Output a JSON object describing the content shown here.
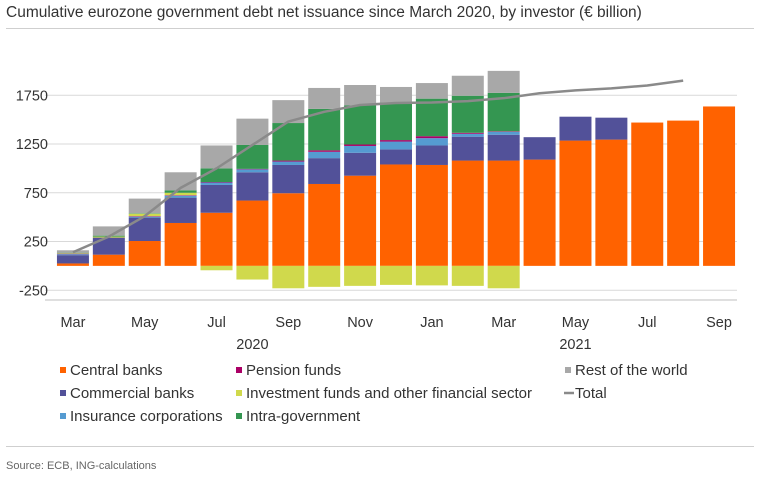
{
  "title": "Cumulative eurozone government debt net issuance since March 2020, by investor (€ billion)",
  "source": "Source: ECB, ING-calculations",
  "colors": {
    "Central banks": "#ff6200",
    "Commercial banks": "#525199",
    "Insurance corporations": "#559bd1",
    "Pension funds": "#ab0066",
    "Investment funds and other financial sector": "#d0d94c",
    "Intra-government": "#349651",
    "Rest of the world": "#a8a8a8",
    "Total": "#8a8a8a"
  },
  "chart_data": {
    "type": "bar",
    "stacked": true,
    "title": "Cumulative eurozone government debt net issuance since March 2020, by investor (€ billion)",
    "xlabel": "",
    "ylabel": "",
    "ylim": [
      -350,
      2050
    ],
    "yticks": [
      1750,
      1250,
      750,
      250,
      -250
    ],
    "xticks": [
      {
        "label": "Mar",
        "index": 0
      },
      {
        "label": "May",
        "index": 2
      },
      {
        "label": "Jul",
        "index": 4
      },
      {
        "label": "Sep",
        "index": 6
      },
      {
        "label": "Nov",
        "index": 8
      },
      {
        "label": "Jan",
        "index": 10
      },
      {
        "label": "Mar",
        "index": 12
      },
      {
        "label": "May",
        "index": 14
      },
      {
        "label": "Jul",
        "index": 16
      },
      {
        "label": "Sep",
        "index": 18
      }
    ],
    "year_labels": [
      {
        "label": "2020",
        "index": 5
      },
      {
        "label": "2021",
        "index": 14
      }
    ],
    "categories": [
      "Mar 2020",
      "Apr 2020",
      "May 2020",
      "Jun 2020",
      "Jul 2020",
      "Aug 2020",
      "Sep 2020",
      "Oct 2020",
      "Nov 2020",
      "Dec 2020",
      "Jan 2021",
      "Feb 2021",
      "Mar 2021",
      "Apr 2021",
      "May 2021",
      "Jun 2021",
      "Jul 2021",
      "Aug 2021",
      "Sep 2021"
    ],
    "series": [
      {
        "name": "Central banks",
        "values": [
          25,
          115,
          255,
          440,
          545,
          670,
          745,
          840,
          925,
          1040,
          1035,
          1080,
          1080,
          1090,
          1285,
          1295,
          1470,
          1490,
          1635
        ]
      },
      {
        "name": "Commercial banks",
        "values": [
          85,
          175,
          240,
          260,
          285,
          290,
          290,
          265,
          235,
          155,
          200,
          245,
          265,
          230,
          245,
          225,
          0,
          0,
          0
        ]
      },
      {
        "name": "Insurance corporations",
        "values": [
          10,
          0,
          10,
          20,
          25,
          30,
          35,
          65,
          70,
          80,
          75,
          30,
          30,
          0,
          0,
          0,
          0,
          0,
          0
        ]
      },
      {
        "name": "Pension funds",
        "values": [
          5,
          0,
          5,
          5,
          5,
          5,
          10,
          15,
          15,
          15,
          20,
          10,
          5,
          0,
          0,
          0,
          0,
          0,
          0
        ]
      },
      {
        "name": "Investment funds and other financial sector",
        "values": [
          5,
          10,
          25,
          25,
          -45,
          -140,
          -230,
          -215,
          -205,
          -195,
          -200,
          -205,
          -230,
          0,
          0,
          0,
          0,
          0,
          0
        ]
      },
      {
        "name": "Intra-government",
        "values": [
          5,
          10,
          5,
          25,
          140,
          245,
          385,
          425,
          400,
          385,
          385,
          380,
          395,
          0,
          0,
          0,
          0,
          0,
          0
        ]
      },
      {
        "name": "Rest of the world",
        "values": [
          25,
          95,
          150,
          185,
          235,
          270,
          235,
          215,
          210,
          160,
          160,
          205,
          225,
          0,
          0,
          0,
          0,
          0,
          0
        ]
      },
      {
        "name": "Total",
        "type": "line",
        "values": [
          140,
          300,
          510,
          800,
          1000,
          1240,
          1480,
          1580,
          1650,
          1670,
          1675,
          1690,
          1720,
          1770,
          1800,
          1820,
          1850,
          1900,
          null
        ]
      }
    ],
    "legend": {
      "placement": "bottom",
      "entries": [
        {
          "name": "Central banks",
          "marker": "square"
        },
        {
          "name": "Pension funds",
          "marker": "square"
        },
        {
          "name": "Rest of the world",
          "marker": "square"
        },
        {
          "name": "Commercial banks",
          "marker": "square"
        },
        {
          "name": "Investment funds and other financial sector",
          "marker": "square"
        },
        {
          "name": "Total",
          "marker": "line"
        },
        {
          "name": "Insurance corporations",
          "marker": "square"
        },
        {
          "name": "Intra-government",
          "marker": "square"
        }
      ]
    },
    "grid": true
  }
}
